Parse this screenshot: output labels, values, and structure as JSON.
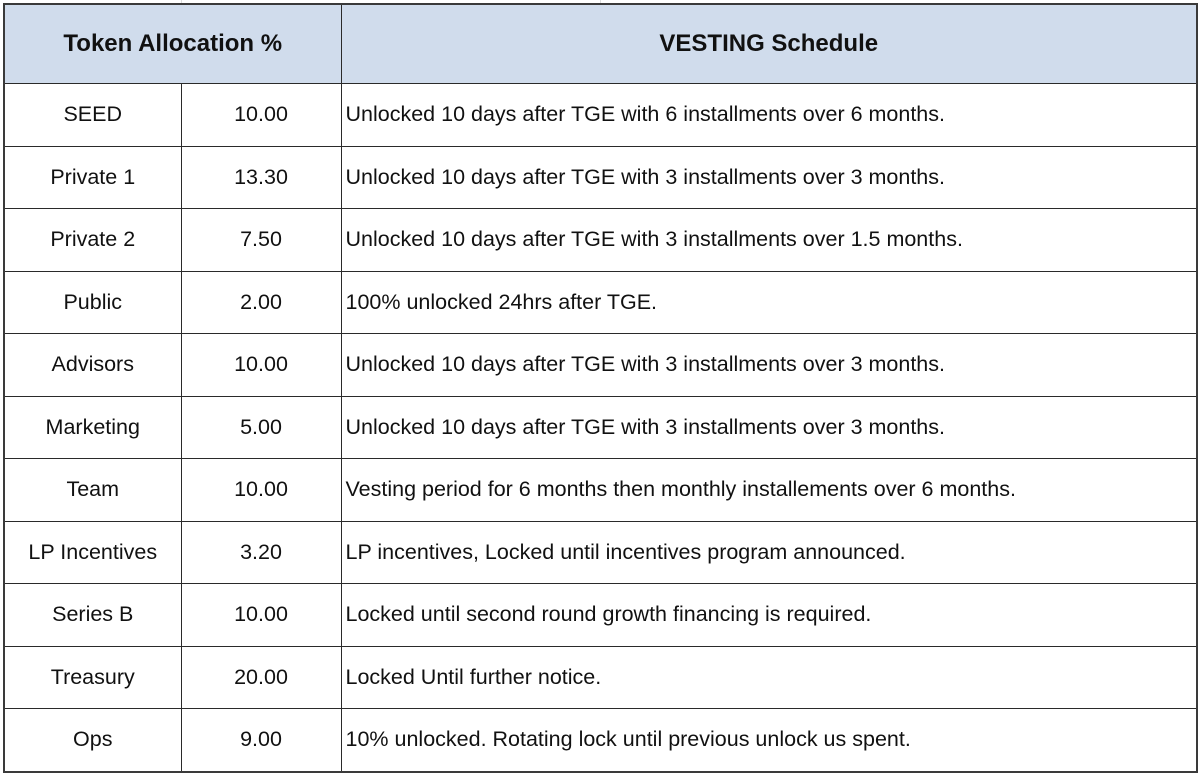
{
  "header": {
    "allocation": "Token Allocation %",
    "vesting": "VESTING Schedule"
  },
  "rows": [
    {
      "name": "SEED",
      "value": "10.00",
      "schedule": "Unlocked 10 days after TGE with 6 installments over 6 months."
    },
    {
      "name": "Private 1",
      "value": "13.30",
      "schedule": "Unlocked 10 days after TGE with 3 installments over 3 months."
    },
    {
      "name": "Private 2",
      "value": "7.50",
      "schedule": "Unlocked 10 days after TGE with 3 installments over 1.5 months."
    },
    {
      "name": "Public",
      "value": "2.00",
      "schedule": "100% unlocked 24hrs after TGE."
    },
    {
      "name": "Advisors",
      "value": "10.00",
      "schedule": "Unlocked 10 days after TGE with 3 installments over 3 months."
    },
    {
      "name": "Marketing",
      "value": "5.00",
      "schedule": "Unlocked 10 days after TGE with 3 installments over 3 months."
    },
    {
      "name": "Team",
      "value": "10.00",
      "schedule": "Vesting period for 6 months then monthly installements over 6 months."
    },
    {
      "name": "LP Incentives",
      "value": "3.20",
      "schedule": "LP incentives, Locked until incentives program announced."
    },
    {
      "name": "Series B",
      "value": "10.00",
      "schedule": "Locked  until second round growth financing is required."
    },
    {
      "name": "Treasury",
      "value": "20.00",
      "schedule": "Locked Until further notice."
    },
    {
      "name": "Ops",
      "value": "9.00",
      "schedule": "10% unlocked. Rotating lock until previous unlock us spent."
    }
  ],
  "colors": {
    "header_bg": "#d0dcec",
    "border": "#2a2a2a"
  }
}
